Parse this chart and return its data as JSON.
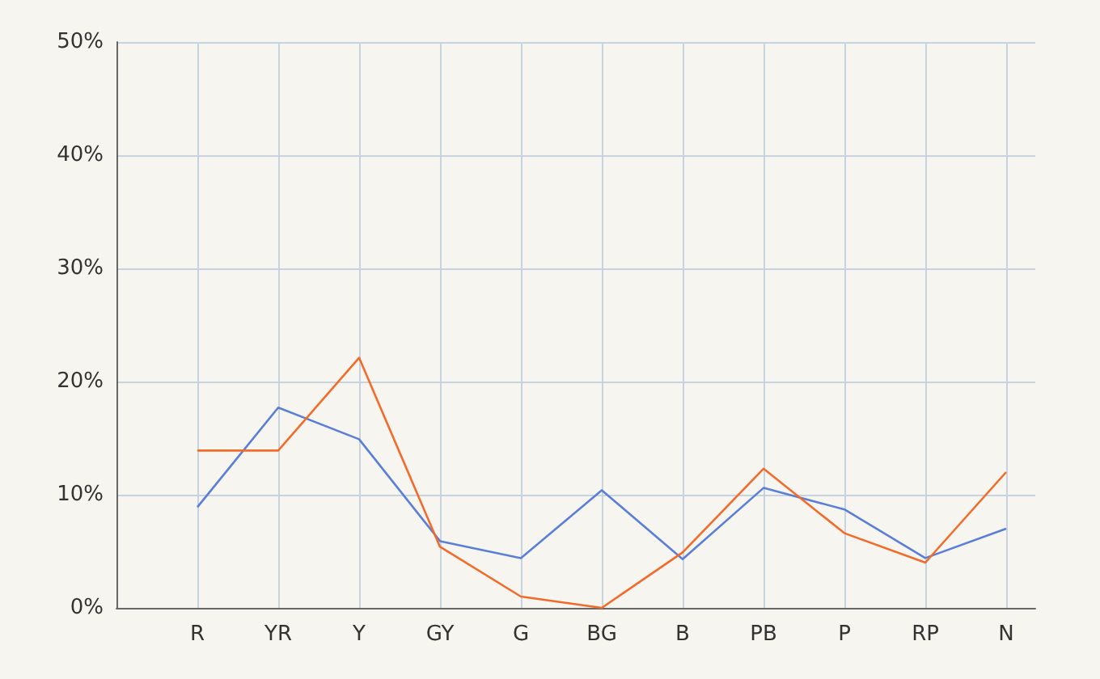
{
  "chart_data": {
    "type": "line",
    "categories": [
      "R",
      "YR",
      "Y",
      "GY",
      "G",
      "BG",
      "B",
      "PB",
      "P",
      "RP",
      "N"
    ],
    "series": [
      {
        "color": "#5b7fd6",
        "values": [
          8.9,
          17.7,
          14.9,
          5.9,
          4.4,
          10.4,
          4.3,
          10.6,
          8.7,
          4.4,
          7.0
        ]
      },
      {
        "color": "#f26b2a",
        "values": [
          13.9,
          13.9,
          22.1,
          5.4,
          1.0,
          0,
          4.9,
          12.3,
          6.6,
          4.0,
          12.0
        ]
      }
    ],
    "ylim": [
      0,
      50
    ],
    "yticks": [
      {
        "value": 0,
        "label": "0%"
      },
      {
        "value": 10,
        "label": "10%"
      },
      {
        "value": 20,
        "label": "20%"
      },
      {
        "value": 30,
        "label": "30%"
      },
      {
        "value": 40,
        "label": "40%"
      },
      {
        "value": 50,
        "label": "50%"
      }
    ],
    "grid": true,
    "marker": "none",
    "line_style": "solid"
  }
}
